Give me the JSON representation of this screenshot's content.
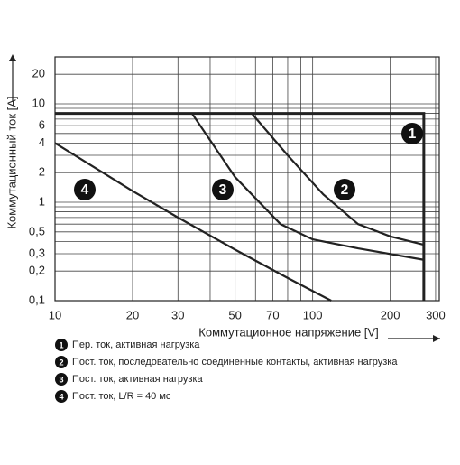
{
  "chart_data": {
    "type": "line",
    "x_label": "Коммутационное напряжение [V]",
    "y_label": "Коммутационный ток [A]",
    "xscale": "log",
    "yscale": "log",
    "grid": true,
    "xlim": [
      10,
      310
    ],
    "ylim": [
      0.1,
      30
    ],
    "xticks": [
      10,
      20,
      30,
      50,
      70,
      100,
      200,
      300
    ],
    "yticks": [
      {
        "value": 0.1,
        "label": "0,1"
      },
      {
        "value": 0.2,
        "label": "0,2"
      },
      {
        "value": 0.3,
        "label": "0,3"
      },
      {
        "value": 0.5,
        "label": "0,5"
      },
      1,
      2,
      4,
      6,
      10,
      20
    ],
    "minor_xticks": [
      40,
      60,
      80,
      90
    ],
    "minor_yticks": [
      0.4,
      0.6,
      0.7,
      0.8,
      0.9,
      3,
      5,
      7,
      8,
      9
    ],
    "series": [
      {
        "label": "1",
        "name": "Пер. ток, активная нагрузка",
        "color": "#222222",
        "x": [
          10,
          270,
          270
        ],
        "values": [
          8,
          8,
          0.1
        ]
      },
      {
        "label": "2",
        "name": "Пост. ток, последовательно соединенные контакты, активная нагрузка",
        "color": "#222222",
        "x": [
          58,
          80,
          110,
          150,
          200,
          270
        ],
        "values": [
          8,
          3,
          1.2,
          0.6,
          0.45,
          0.37
        ]
      },
      {
        "label": "3",
        "name": "Пост. ток, активная нагрузка",
        "color": "#222222",
        "x": [
          34,
          50,
          75,
          100,
          150,
          270
        ],
        "values": [
          8,
          1.8,
          0.6,
          0.42,
          0.34,
          0.26
        ]
      },
      {
        "label": "4",
        "name": "Пост. ток, L/R = 40 мс",
        "color": "#222222",
        "x": [
          10,
          20,
          30,
          50,
          80,
          118
        ],
        "values": [
          4,
          1.3,
          0.7,
          0.33,
          0.17,
          0.1
        ]
      }
    ]
  }
}
